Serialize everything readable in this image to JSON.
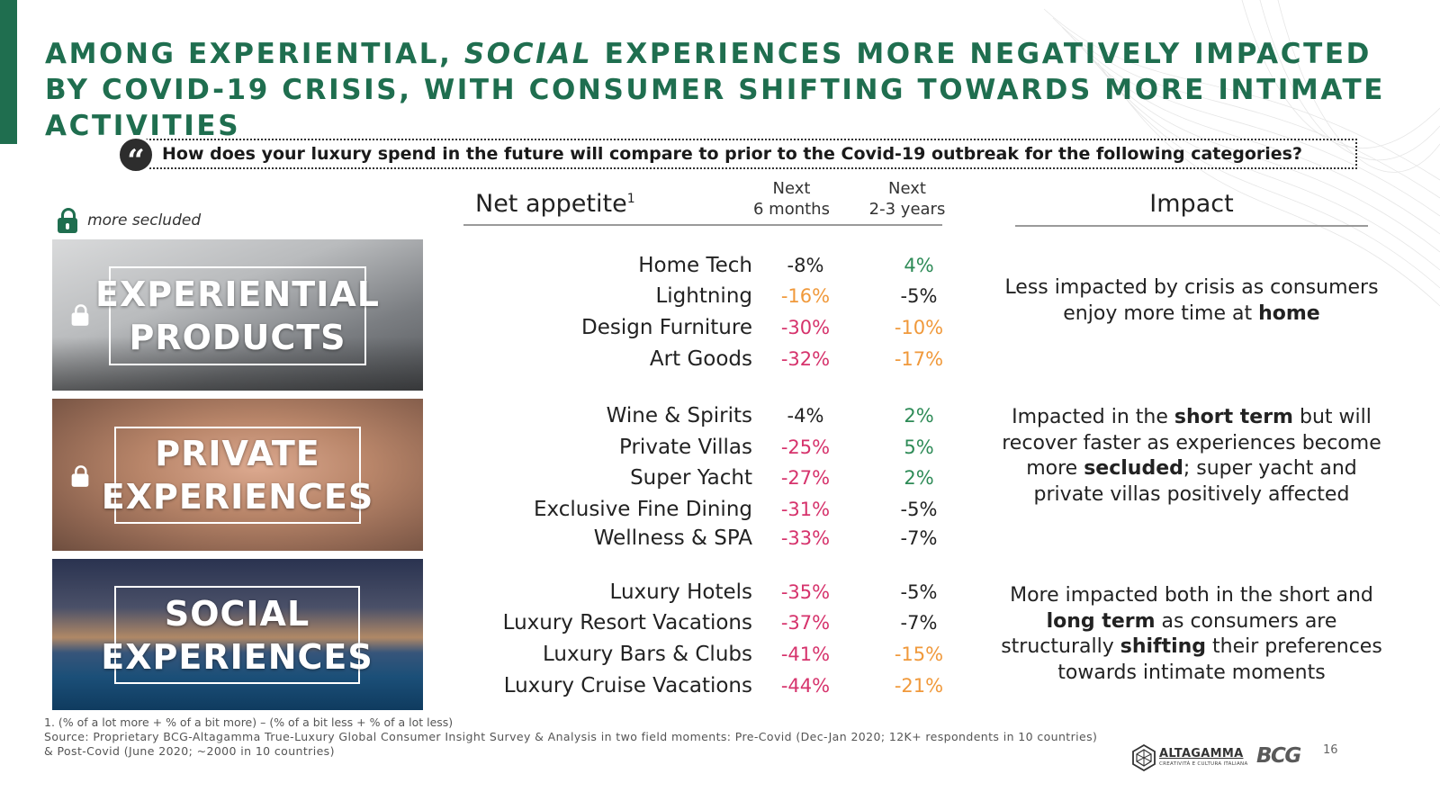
{
  "title": {
    "part1": "AMONG EXPERIENTIAL, ",
    "italic": "SOCIAL",
    "part2": " EXPERIENCES MORE NEGATIVELY IMPACTED BY COVID-19 CRISIS, WITH CONSUMER SHIFTING TOWARDS MORE INTIMATE ACTIVITIES"
  },
  "question": {
    "quote_mark": "“",
    "text": "How does your luxury spend in the future will compare to prior to the Covid-19 outbreak for the following categories?"
  },
  "legend": {
    "icon": "lock-icon",
    "label": "more secluded"
  },
  "panels": [
    {
      "label": "EXPERIENTIAL\nPRODUCTS",
      "locked": true
    },
    {
      "label": "PRIVATE\nEXPERIENCES",
      "locked": true
    },
    {
      "label": "SOCIAL\nEXPERIENCES",
      "locked": false
    }
  ],
  "headers": {
    "net_appetite": "Net appetite",
    "net_appetite_sup": "1",
    "next_6_months": "Next\n6 months",
    "next_2_3_years": "Next\n2-3 years",
    "impact": "Impact"
  },
  "colors": {
    "accent_green": "#1f6e4f",
    "negative_strong": "#d6336c",
    "negative_mild": "#f0993b",
    "positive": "#2e8b57",
    "neutral": "#222222"
  },
  "table": {
    "groups": [
      {
        "rows": [
          {
            "category": "Home Tech",
            "next_6_months": "-8%",
            "next_2_3_years": "4%",
            "c6": "neutral",
            "c23": "positive"
          },
          {
            "category": "Lightning",
            "next_6_months": "-16%",
            "next_2_3_years": "-5%",
            "c6": "negative_mild",
            "c23": "neutral"
          },
          {
            "category": "Design Furniture",
            "next_6_months": "-30%",
            "next_2_3_years": "-10%",
            "c6": "negative_strong",
            "c23": "negative_mild"
          },
          {
            "category": "Art Goods",
            "next_6_months": "-32%",
            "next_2_3_years": "-17%",
            "c6": "negative_strong",
            "c23": "negative_mild"
          }
        ]
      },
      {
        "rows": [
          {
            "category": "Wine & Spirits",
            "next_6_months": "-4%",
            "next_2_3_years": "2%",
            "c6": "neutral",
            "c23": "positive"
          },
          {
            "category": "Private Villas",
            "next_6_months": "-25%",
            "next_2_3_years": "5%",
            "c6": "negative_strong",
            "c23": "positive"
          },
          {
            "category": "Super Yacht",
            "next_6_months": "-27%",
            "next_2_3_years": "2%",
            "c6": "negative_strong",
            "c23": "positive"
          },
          {
            "category": "Exclusive Fine Dining",
            "next_6_months": "-31%",
            "next_2_3_years": "-5%",
            "c6": "negative_strong",
            "c23": "neutral"
          },
          {
            "category": "Wellness & SPA",
            "next_6_months": "-33%",
            "next_2_3_years": "-7%",
            "c6": "negative_strong",
            "c23": "neutral"
          }
        ]
      },
      {
        "rows": [
          {
            "category": "Luxury Hotels",
            "next_6_months": "-35%",
            "next_2_3_years": "-5%",
            "c6": "negative_strong",
            "c23": "neutral"
          },
          {
            "category": "Luxury Resort Vacations",
            "next_6_months": "-37%",
            "next_2_3_years": "-7%",
            "c6": "negative_strong",
            "c23": "neutral"
          },
          {
            "category": "Luxury Bars & Clubs",
            "next_6_months": "-41%",
            "next_2_3_years": "-15%",
            "c6": "negative_strong",
            "c23": "negative_mild"
          },
          {
            "category": "Luxury Cruise Vacations",
            "next_6_months": "-44%",
            "next_2_3_years": "-21%",
            "c6": "negative_strong",
            "c23": "negative_mild"
          }
        ]
      }
    ]
  },
  "impacts": [
    [
      {
        "t": "Less impacted by crisis as consumers enjoy more time at "
      },
      {
        "t": "home",
        "b": true
      }
    ],
    [
      {
        "t": "Impacted in the "
      },
      {
        "t": "short term",
        "b": true
      },
      {
        "t": " but will recover faster as experiences become more "
      },
      {
        "t": "secluded",
        "b": true
      },
      {
        "t": "; super yacht and private villas positively affected"
      }
    ],
    [
      {
        "t": "More impacted both in the short and "
      },
      {
        "t": "long term",
        "b": true
      },
      {
        "t": " as consumers are structurally "
      },
      {
        "t": "shifting",
        "b": true
      },
      {
        "t": " their preferences towards intimate moments"
      }
    ]
  ],
  "footnote": "1. (% of a lot more + % of a bit more) – (% of a bit less + % of a lot less)",
  "source": "Source: Proprietary BCG-Altagamma True-Luxury Global Consumer Insight Survey & Analysis in two field moments: Pre-Covid (Dec-Jan 2020; 12K+ respondents in 10 countries) & Post-Covid (June 2020; ~2000 in 10 countries)",
  "logos": {
    "altagamma": "ALTAGAMMA",
    "altagamma_tagline": "CREATIVITÀ E CULTURA ITALIANA",
    "bcg": "BCG"
  },
  "page_number": "16"
}
